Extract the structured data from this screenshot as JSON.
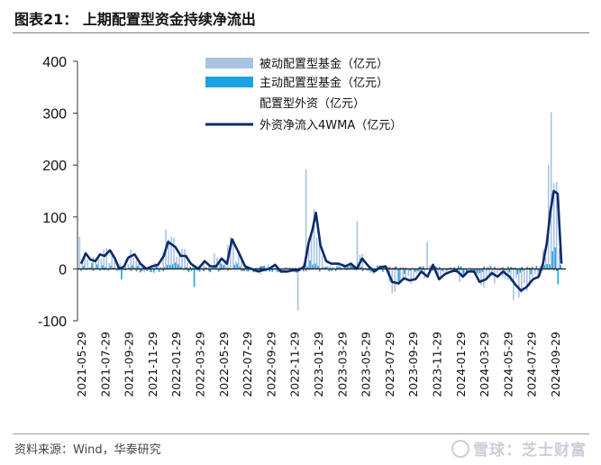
{
  "figure": {
    "title": "图表21：   上期配置型资金持续净流出",
    "source": "资料来源：Wind，华泰研究",
    "watermark": "雪球：芝士财富"
  },
  "colors": {
    "passive": "#a9c3e2",
    "active": "#1aa3e3",
    "foreign": "#7b7b7b",
    "ma": "#0d2a6a",
    "axis": "#333333",
    "rule": "#7a7a7a"
  },
  "chart_data": {
    "type": "bar",
    "ylim": [
      -100,
      400
    ],
    "yticks": [
      -100,
      0,
      100,
      200,
      300,
      400
    ],
    "xticks": [
      "2021-05-29",
      "2021-07-29",
      "2021-09-29",
      "2021-11-29",
      "2022-01-29",
      "2022-03-29",
      "2022-05-29",
      "2022-07-29",
      "2022-09-29",
      "2022-11-29",
      "2023-01-29",
      "2023-03-29",
      "2023-05-29",
      "2023-07-29",
      "2023-09-29",
      "2023-11-29",
      "2024-01-29",
      "2024-03-29",
      "2024-05-29",
      "2024-07-29",
      "2024-09-29"
    ],
    "legend_position": "top-right",
    "series": [
      {
        "name": "被动配置型基金（亿元）",
        "type": "bar"
      },
      {
        "name": "主动配置型基金（亿元）",
        "type": "bar"
      },
      {
        "name": "配置型外资（亿元）",
        "type": "bar"
      },
      {
        "name": "外资净流入4WMA（亿元）",
        "type": "line"
      }
    ],
    "ma_points": [
      [
        "2021-05-29",
        10
      ],
      [
        "2021-06-10",
        30
      ],
      [
        "2021-06-22",
        18
      ],
      [
        "2021-07-05",
        15
      ],
      [
        "2021-07-17",
        28
      ],
      [
        "2021-07-29",
        25
      ],
      [
        "2021-08-12",
        36
      ],
      [
        "2021-08-25",
        20
      ],
      [
        "2021-09-05",
        0
      ],
      [
        "2021-09-18",
        5
      ],
      [
        "2021-09-29",
        22
      ],
      [
        "2021-10-15",
        28
      ],
      [
        "2021-10-30",
        10
      ],
      [
        "2021-11-15",
        0
      ],
      [
        "2021-11-29",
        5
      ],
      [
        "2021-12-15",
        8
      ],
      [
        "2021-12-30",
        25
      ],
      [
        "2022-01-10",
        52
      ],
      [
        "2022-01-29",
        42
      ],
      [
        "2022-02-12",
        25
      ],
      [
        "2022-02-25",
        25
      ],
      [
        "2022-03-10",
        10
      ],
      [
        "2022-03-29",
        0
      ],
      [
        "2022-04-15",
        15
      ],
      [
        "2022-04-30",
        5
      ],
      [
        "2022-05-15",
        5
      ],
      [
        "2022-05-29",
        20
      ],
      [
        "2022-06-12",
        10
      ],
      [
        "2022-06-25",
        57
      ],
      [
        "2022-07-10",
        35
      ],
      [
        "2022-07-29",
        5
      ],
      [
        "2022-08-15",
        0
      ],
      [
        "2022-09-01",
        -5
      ],
      [
        "2022-09-15",
        -2
      ],
      [
        "2022-09-29",
        0
      ],
      [
        "2022-10-15",
        8
      ],
      [
        "2022-10-30",
        -5
      ],
      [
        "2022-11-15",
        -5
      ],
      [
        "2022-11-29",
        -3
      ],
      [
        "2022-12-15",
        -3
      ],
      [
        "2022-12-30",
        5
      ],
      [
        "2023-01-10",
        50
      ],
      [
        "2023-01-20",
        75
      ],
      [
        "2023-01-29",
        108
      ],
      [
        "2023-02-10",
        45
      ],
      [
        "2023-02-25",
        15
      ],
      [
        "2023-03-10",
        10
      ],
      [
        "2023-03-29",
        10
      ],
      [
        "2023-04-15",
        5
      ],
      [
        "2023-04-30",
        10
      ],
      [
        "2023-05-15",
        0
      ],
      [
        "2023-05-29",
        20
      ],
      [
        "2023-06-15",
        5
      ],
      [
        "2023-06-30",
        -5
      ],
      [
        "2023-07-15",
        3
      ],
      [
        "2023-07-29",
        5
      ],
      [
        "2023-08-15",
        -25
      ],
      [
        "2023-09-01",
        -28
      ],
      [
        "2023-09-15",
        -18
      ],
      [
        "2023-09-29",
        -22
      ],
      [
        "2023-10-15",
        -20
      ],
      [
        "2023-10-30",
        -5
      ],
      [
        "2023-11-15",
        -15
      ],
      [
        "2023-11-29",
        8
      ],
      [
        "2023-12-15",
        -20
      ],
      [
        "2023-12-30",
        -10
      ],
      [
        "2024-01-15",
        -5
      ],
      [
        "2024-01-29",
        -3
      ],
      [
        "2024-02-15",
        -15
      ],
      [
        "2024-02-28",
        -5
      ],
      [
        "2024-03-15",
        -5
      ],
      [
        "2024-03-29",
        -25
      ],
      [
        "2024-04-15",
        -20
      ],
      [
        "2024-04-30",
        -8
      ],
      [
        "2024-05-15",
        -15
      ],
      [
        "2024-05-29",
        -5
      ],
      [
        "2024-06-15",
        -15
      ],
      [
        "2024-06-30",
        -30
      ],
      [
        "2024-07-15",
        -42
      ],
      [
        "2024-07-29",
        -35
      ],
      [
        "2024-08-15",
        -20
      ],
      [
        "2024-08-30",
        -15
      ],
      [
        "2024-09-10",
        10
      ],
      [
        "2024-09-20",
        50
      ],
      [
        "2024-09-29",
        110
      ],
      [
        "2024-10-08",
        150
      ],
      [
        "2024-10-18",
        145
      ],
      [
        "2024-10-28",
        10
      ]
    ],
    "bar_peaks": [
      [
        "2021-06-01",
        62,
        "passive"
      ],
      [
        "2021-08-10",
        40,
        "passive"
      ],
      [
        "2021-09-10",
        -20,
        "active"
      ],
      [
        "2022-01-05",
        76,
        "passive"
      ],
      [
        "2022-03-20",
        -35,
        "active"
      ],
      [
        "2022-05-15",
        30,
        "passive"
      ],
      [
        "2022-12-20",
        -80,
        "passive"
      ],
      [
        "2023-01-05",
        192,
        "passive"
      ],
      [
        "2023-01-25",
        115,
        "passive"
      ],
      [
        "2023-05-20",
        92,
        "passive"
      ],
      [
        "2023-09-05",
        -30,
        "active"
      ],
      [
        "2023-11-15",
        52,
        "passive"
      ],
      [
        "2024-06-30",
        -60,
        "passive"
      ],
      [
        "2024-09-25",
        200,
        "passive"
      ],
      [
        "2024-10-02",
        302,
        "passive"
      ],
      [
        "2024-10-10",
        165,
        "passive"
      ],
      [
        "2024-10-22",
        -30,
        "active"
      ]
    ]
  },
  "legend": {
    "items": [
      {
        "label": "被动配置型基金（亿元）",
        "kind": "bar",
        "color_key": "passive"
      },
      {
        "label": "主动配置型基金（亿元）",
        "kind": "bar",
        "color_key": "active"
      },
      {
        "label": "配置型外资（亿元）",
        "kind": "bar",
        "color_key": "foreign"
      },
      {
        "label": "外资净流入4WMA（亿元）",
        "kind": "line",
        "color_key": "ma"
      }
    ]
  }
}
